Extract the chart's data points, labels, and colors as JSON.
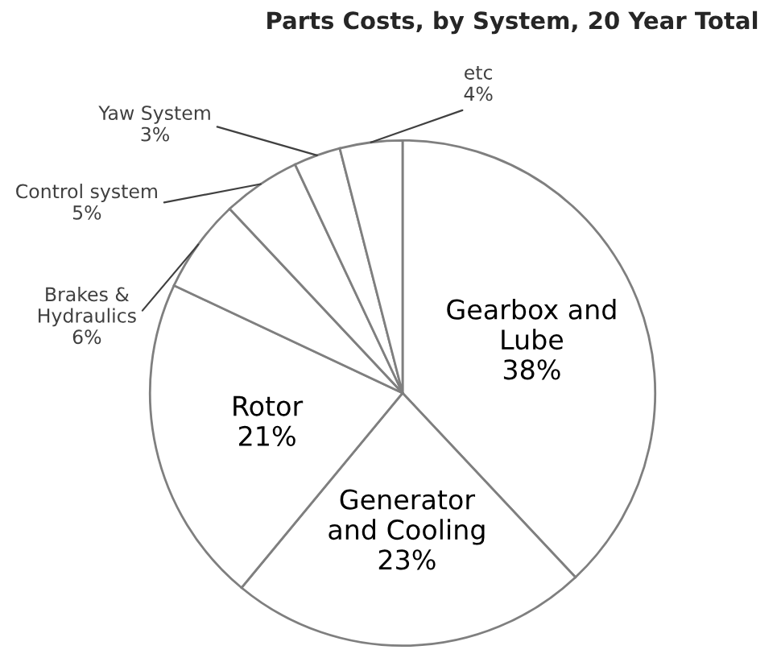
{
  "chart_data": {
    "type": "pie",
    "title": "Parts Costs, by System, 20 Year Total",
    "categories": [
      "Gearbox and\nLube",
      "Generator\nand Cooling",
      "Rotor",
      "Brakes &\nHydraulics",
      "Control system",
      "Yaw System",
      "etc"
    ],
    "values": [
      38,
      23,
      21,
      6,
      5,
      3,
      4
    ],
    "value_labels": [
      "38%",
      "23%",
      "21%",
      "6%",
      "5%",
      "3%",
      "4%"
    ],
    "colors": [
      "#ffffff",
      "#ffffff",
      "#ffffff",
      "#ffffff",
      "#ffffff",
      "#ffffff",
      "#ffffff"
    ],
    "legend": false
  }
}
